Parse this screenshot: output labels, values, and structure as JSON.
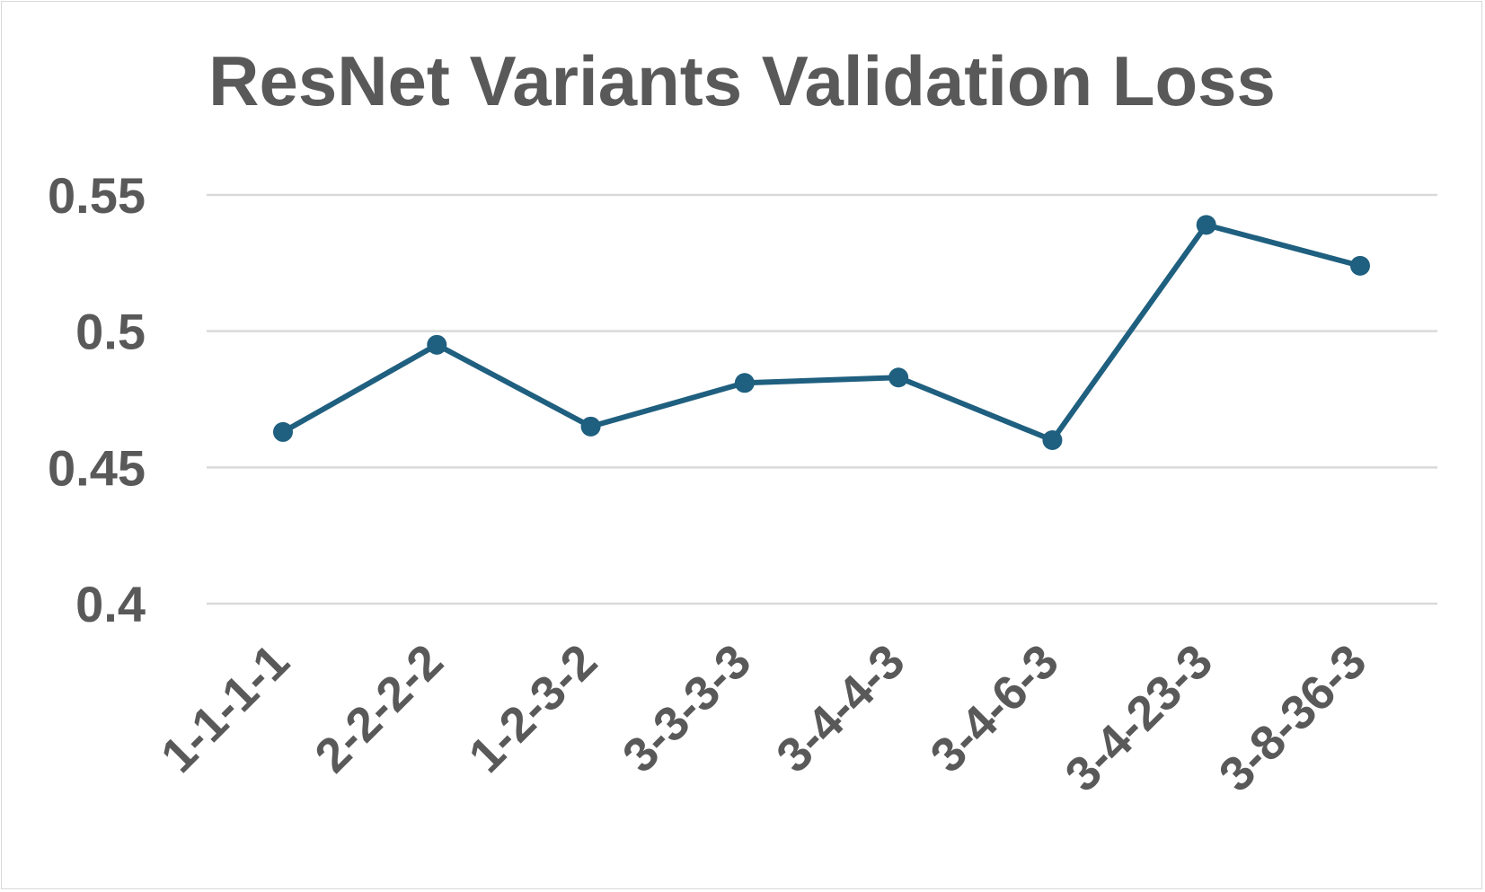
{
  "chart_data": {
    "type": "line",
    "title": "ResNet Variants Validation Loss",
    "xlabel": "",
    "ylabel": "",
    "categories": [
      "1-1-1-1",
      "2-2-2-2",
      "1-2-3-2",
      "3-3-3-3",
      "3-4-4-3",
      "3-4-6-3",
      "3-4-23-3",
      "3-8-36-3"
    ],
    "series": [
      {
        "values": [
          0.463,
          0.495,
          0.465,
          0.481,
          0.483,
          0.46,
          0.539,
          0.524
        ],
        "color": "#1f5f7f"
      }
    ],
    "ylim": [
      0.4,
      0.55
    ],
    "yticks": [
      0.4,
      0.45,
      0.5,
      0.55
    ],
    "ytick_labels": [
      "0.4",
      "0.45",
      "0.5",
      "0.55"
    ],
    "grid": true,
    "legend": "none",
    "colors": {
      "text": "#595959",
      "grid": "#d9d9d9",
      "line": "#1f5f7f"
    }
  }
}
